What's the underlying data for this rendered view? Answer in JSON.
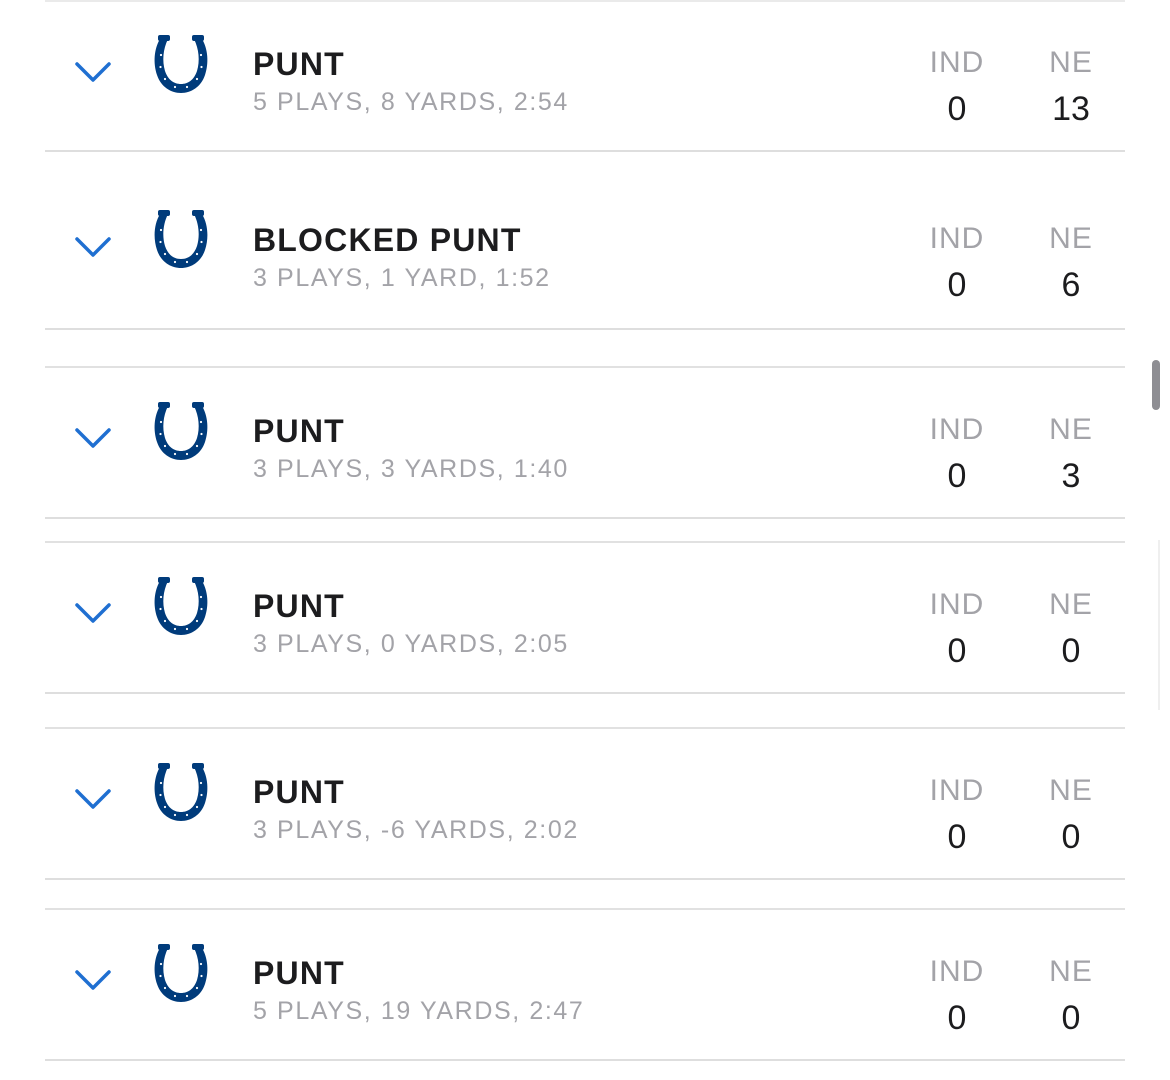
{
  "teams": {
    "home_abbr": "IND",
    "away_abbr": "NE",
    "logo_icon": "colts-horseshoe-icon",
    "logo_color": "#003b7b",
    "chevron_color": "#1f6fd1"
  },
  "drives": [
    {
      "result": "PUNT",
      "summary": "5 PLAYS, 8 YARDS, 2:54",
      "ind_score": "0",
      "ne_score": "13"
    },
    {
      "result": "BLOCKED PUNT",
      "summary": "3 PLAYS, 1 YARD, 1:52",
      "ind_score": "0",
      "ne_score": "6"
    },
    {
      "result": "PUNT",
      "summary": "3 PLAYS, 3 YARDS, 1:40",
      "ind_score": "0",
      "ne_score": "3"
    },
    {
      "result": "PUNT",
      "summary": "3 PLAYS, 0 YARDS, 2:05",
      "ind_score": "0",
      "ne_score": "0"
    },
    {
      "result": "PUNT",
      "summary": "3 PLAYS, -6 YARDS, 2:02",
      "ind_score": "0",
      "ne_score": "0"
    },
    {
      "result": "PUNT",
      "summary": "5 PLAYS, 19 YARDS, 2:47",
      "ind_score": "0",
      "ne_score": "0"
    }
  ]
}
